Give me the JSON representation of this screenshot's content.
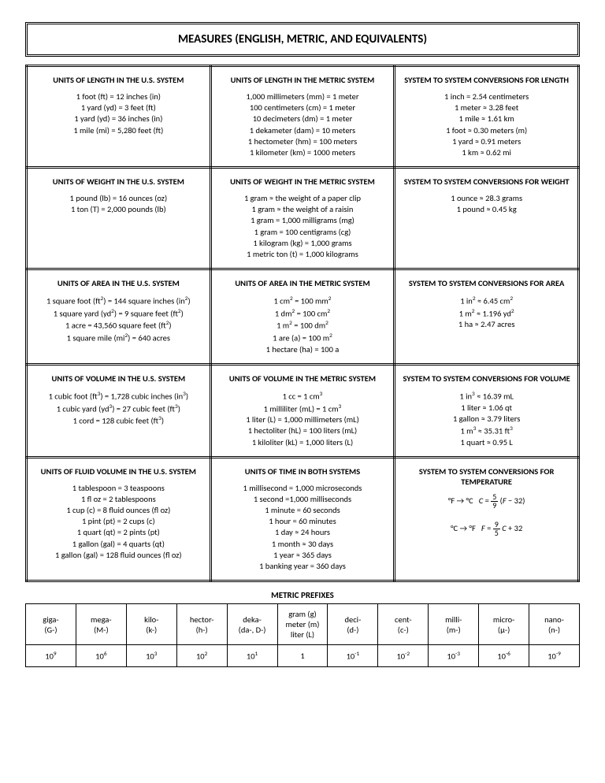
{
  "title": "MEASURES (ENGLISH, METRIC, AND EQUIVALENTS)",
  "grid": [
    [
      {
        "heading": "UNITS OF LENGTH IN THE U.S. SYSTEM",
        "lines": [
          "1 foot (ft) = 12 inches (in)",
          "1 yard (yd) = 3 feet (ft)",
          "1 yard (yd) = 36 inches (in)",
          "1 mile (mi) = 5,280 feet (ft)"
        ]
      },
      {
        "heading": "UNITS OF LENGTH IN THE METRIC SYSTEM",
        "lines": [
          "1,000 millimeters (mm) = 1 meter",
          "100 centimeters (cm) = 1 meter",
          "10 decimeters (dm) = 1 meter",
          "1 dekameter (dam) = 10 meters",
          "1 hectometer (hm) = 100 meters",
          "1 kilometer (km) = 1000 meters"
        ]
      },
      {
        "heading": "SYSTEM TO SYSTEM CONVERSIONS FOR LENGTH",
        "lines": [
          "1 inch = 2.54 centimeters",
          "1 meter ≈ 3.28 feet",
          "1 mile ≈ 1.61 km",
          "1 foot ≈ 0.30 meters (m)",
          "1 yard ≈ 0.91 meters",
          "1 km ≈ 0.62 mi"
        ]
      }
    ],
    [
      {
        "heading": "UNITS OF WEIGHT IN THE U.S. SYSTEM",
        "lines": [
          "1 pound (lb) = 16 ounces (oz)",
          "1 ton (T) = 2,000 pounds (lb)"
        ]
      },
      {
        "heading": "UNITS OF WEIGHT IN THE METRIC SYSTEM",
        "lines": [
          "1 gram ≈ the weight of a paper clip",
          "1 gram ≈ the weight of a raisin",
          "1 gram = 1,000 milligrams (mg)",
          "1 gram = 100 centigrams (cg)",
          "1 kilogram (kg) = 1,000 grams",
          "1 metric ton (t) = 1,000 kilograms"
        ]
      },
      {
        "heading": "SYSTEM TO SYSTEM CONVERSIONS FOR WEIGHT",
        "lines": [
          "1 ounce ≈ 28.3 grams",
          "1 pound ≈ 0.45 kg"
        ]
      }
    ],
    [
      {
        "heading": "UNITS OF AREA IN THE U.S. SYSTEM",
        "html": "1 square foot (ft<sup>2</sup>) = 144 square inches (in<sup>2</sup>)<br>1 square yard (yd<sup>2</sup>) = 9 square feet (ft<sup>2</sup>)<br>1 acre = 43,560 square feet (ft<sup>2</sup>)<br>1 square mile (mi<sup>2</sup>) = 640 acres"
      },
      {
        "heading": "UNITS OF AREA IN THE METRIC SYSTEM",
        "html": "1 cm<sup>2</sup> = 100 mm<sup>2</sup><br>1 dm<sup>2</sup> = 100 cm<sup>2</sup><br>1 m<sup>2</sup> = 100 dm<sup>2</sup><br>1 are (a) = 100 m<sup>2</sup><br>1 hectare (ha) = 100 a"
      },
      {
        "heading": "SYSTEM TO SYSTEM CONVERSIONS FOR AREA",
        "html": "1 in<sup>2</sup> ≈ 6.45 cm<sup>2</sup><br>1 m<sup>2</sup> ≈ 1.196 yd<sup>2</sup><br>1 ha ≈ 2.47 acres"
      }
    ],
    [
      {
        "heading": "UNITS OF VOLUME IN THE U.S. SYSTEM",
        "html": "1 cubic foot (ft<sup>3</sup>) = 1,728 cubic inches (in<sup>3</sup>)<br>1 cubic yard (yd<sup>3</sup>) = 27 cubic feet (ft<sup>3</sup>)<br>1 cord = 128 cubic feet (ft<sup>3</sup>)"
      },
      {
        "heading": "UNITS OF VOLUME IN THE METRIC SYSTEM",
        "html": "1 cc = 1 cm<sup>3</sup><br>1 milliliter (mL) = 1 cm<sup>3</sup><br>1 liter (L) = 1,000 millimeters (mL)<br>1 hectoliter (hL) = 100 liters (mL)<br>1 kiloliter (kL) = 1,000 liters (L)"
      },
      {
        "heading": "SYSTEM TO SYSTEM CONVERSIONS FOR VOLUME",
        "html": "1 in<sup>3</sup> ≈ 16.39 mL<br>1 liter ≈ 1.06 qt<br>1 gallon ≈ 3.79 liters<br>1 m<sup>3</sup> ≈ 35.31 ft<sup>3</sup><br>1 quart ≈ 0.95 L"
      }
    ],
    [
      {
        "heading": "UNITS OF FLUID VOLUME IN THE U.S. SYSTEM",
        "lines": [
          "1 tablespoon = 3 teaspoons",
          "1 fl oz = 2 tablespoons",
          "1 cup (c) = 8 fluid ounces (fl oz)",
          "1 pint (pt) = 2 cups (c)",
          "1 quart (qt) = 2 pints (pt)",
          "1 gallon (gal) = 4 quarts (qt)",
          "1 gallon (gal) = 128 fluid ounces (fl oz)"
        ]
      },
      {
        "heading": "UNITS OF TIME IN BOTH SYSTEMS",
        "lines": [
          "1 millisecond = 1,000 microseconds",
          "1 second =1,000 milliseconds",
          "1 minute = 60 seconds",
          "1 hour = 60 minutes",
          "1 day ≈ 24 hours",
          "1 month ≈ 30 days",
          "1 year ≈ 365 days",
          "1 banking year = 360 days"
        ]
      },
      {
        "heading": "SYSTEM TO SYSTEM CONVERSIONS FOR TEMPERATURE",
        "html": "<div style='margin-top:6px'>°F → °C &nbsp; <i>C</i> = <span class='frac'><span class='num'>5</span><span class='den'>9</span></span> (<i>F</i> − 32)</div><div style='margin-top:14px'>°C → °F &nbsp; <i>F</i> = <span class='frac'><span class='num'>9</span><span class='den'>5</span></span> <i>C</i> + 32</div>"
      }
    ]
  ],
  "prefixes_title": "METRIC PREFIXES",
  "prefixes": {
    "row1_html": [
      "giga-<br>(G-)",
      "mega-<br>(M-)",
      "kilo-<br>(k-)",
      "hector-<br>(h-)",
      "deka-<br>(da-, D-)",
      "gram (g)<br>meter (m)<br>liter (L)",
      "deci-<br>(d-)",
      "cent-<br>(c-)",
      "milli-<br>(m-)",
      "micro-<br>(μ-)",
      "nano-<br>(n-)"
    ],
    "row2_html": [
      "10<sup>9</sup>",
      "10<sup>6</sup>",
      "10<sup>3</sup>",
      "10<sup>2</sup>",
      "10<sup>1</sup>",
      "1",
      "10<sup>-1</sup>",
      "10<sup>-2</sup>",
      "10<sup>-3</sup>",
      "10<sup>-6</sup>",
      "10<sup>-9</sup>"
    ]
  },
  "colors": {
    "border": "#000000",
    "background": "#ffffff",
    "text": "#000000"
  }
}
